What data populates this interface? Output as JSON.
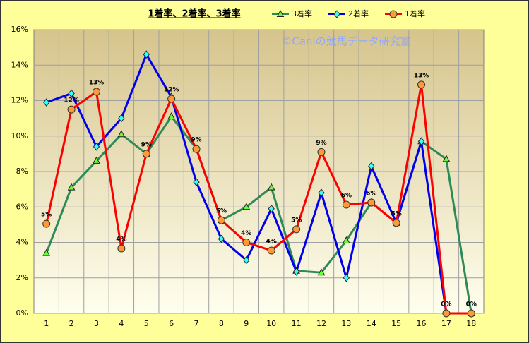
{
  "chart_data": {
    "type": "line",
    "title": "1着率、2着率、3着率",
    "annotation": "©Caniの競馬データ研究室",
    "categories": [
      "1",
      "2",
      "3",
      "4",
      "5",
      "6",
      "7",
      "8",
      "9",
      "10",
      "11",
      "12",
      "13",
      "14",
      "15",
      "16",
      "17",
      "18"
    ],
    "series": [
      {
        "name": "3着率",
        "color": "#2e8b57",
        "marker": "triangle",
        "marker_color": "#66ff33",
        "values": [
          3.4,
          7.1,
          8.6,
          10.1,
          9.0,
          11.1,
          9.3,
          5.25,
          6.0,
          7.1,
          2.4,
          2.3,
          4.1,
          6.25,
          5.1,
          9.7,
          8.7,
          0
        ]
      },
      {
        "name": "2着率",
        "color": "#0000ee",
        "marker": "diamond",
        "marker_color": "#33ffff",
        "values": [
          11.9,
          12.4,
          9.4,
          11.0,
          14.6,
          12.2,
          7.4,
          4.2,
          3.0,
          5.9,
          2.35,
          6.8,
          2.0,
          8.3,
          5.1,
          9.7,
          0,
          0
        ]
      },
      {
        "name": "1着率",
        "color": "#ff0000",
        "marker": "circle",
        "marker_color": "#ff9933",
        "values": [
          5.05,
          11.5,
          12.5,
          3.66,
          9.0,
          12.1,
          9.27,
          5.25,
          4.0,
          3.54,
          4.74,
          9.1,
          6.13,
          6.25,
          5.1,
          12.9,
          0,
          0
        ],
        "value_labels": [
          "5%",
          "12%",
          "13%",
          "4%",
          "9%",
          "12%",
          "9%",
          "5%",
          "4%",
          "4%",
          "5%",
          "9%",
          "6%",
          "6%",
          "5%",
          "13%",
          "0%",
          "0%"
        ]
      }
    ],
    "ylim": [
      0,
      16
    ],
    "yticks": [
      {
        "value": 0,
        "label": "0%"
      },
      {
        "value": 2,
        "label": "2%"
      },
      {
        "value": 4,
        "label": "4%"
      },
      {
        "value": 6,
        "label": "6%"
      },
      {
        "value": 8,
        "label": "8%"
      },
      {
        "value": 10,
        "label": "10%"
      },
      {
        "value": 12,
        "label": "12%"
      },
      {
        "value": 14,
        "label": "14%"
      },
      {
        "value": 16,
        "label": "16%"
      }
    ],
    "grid": true
  }
}
